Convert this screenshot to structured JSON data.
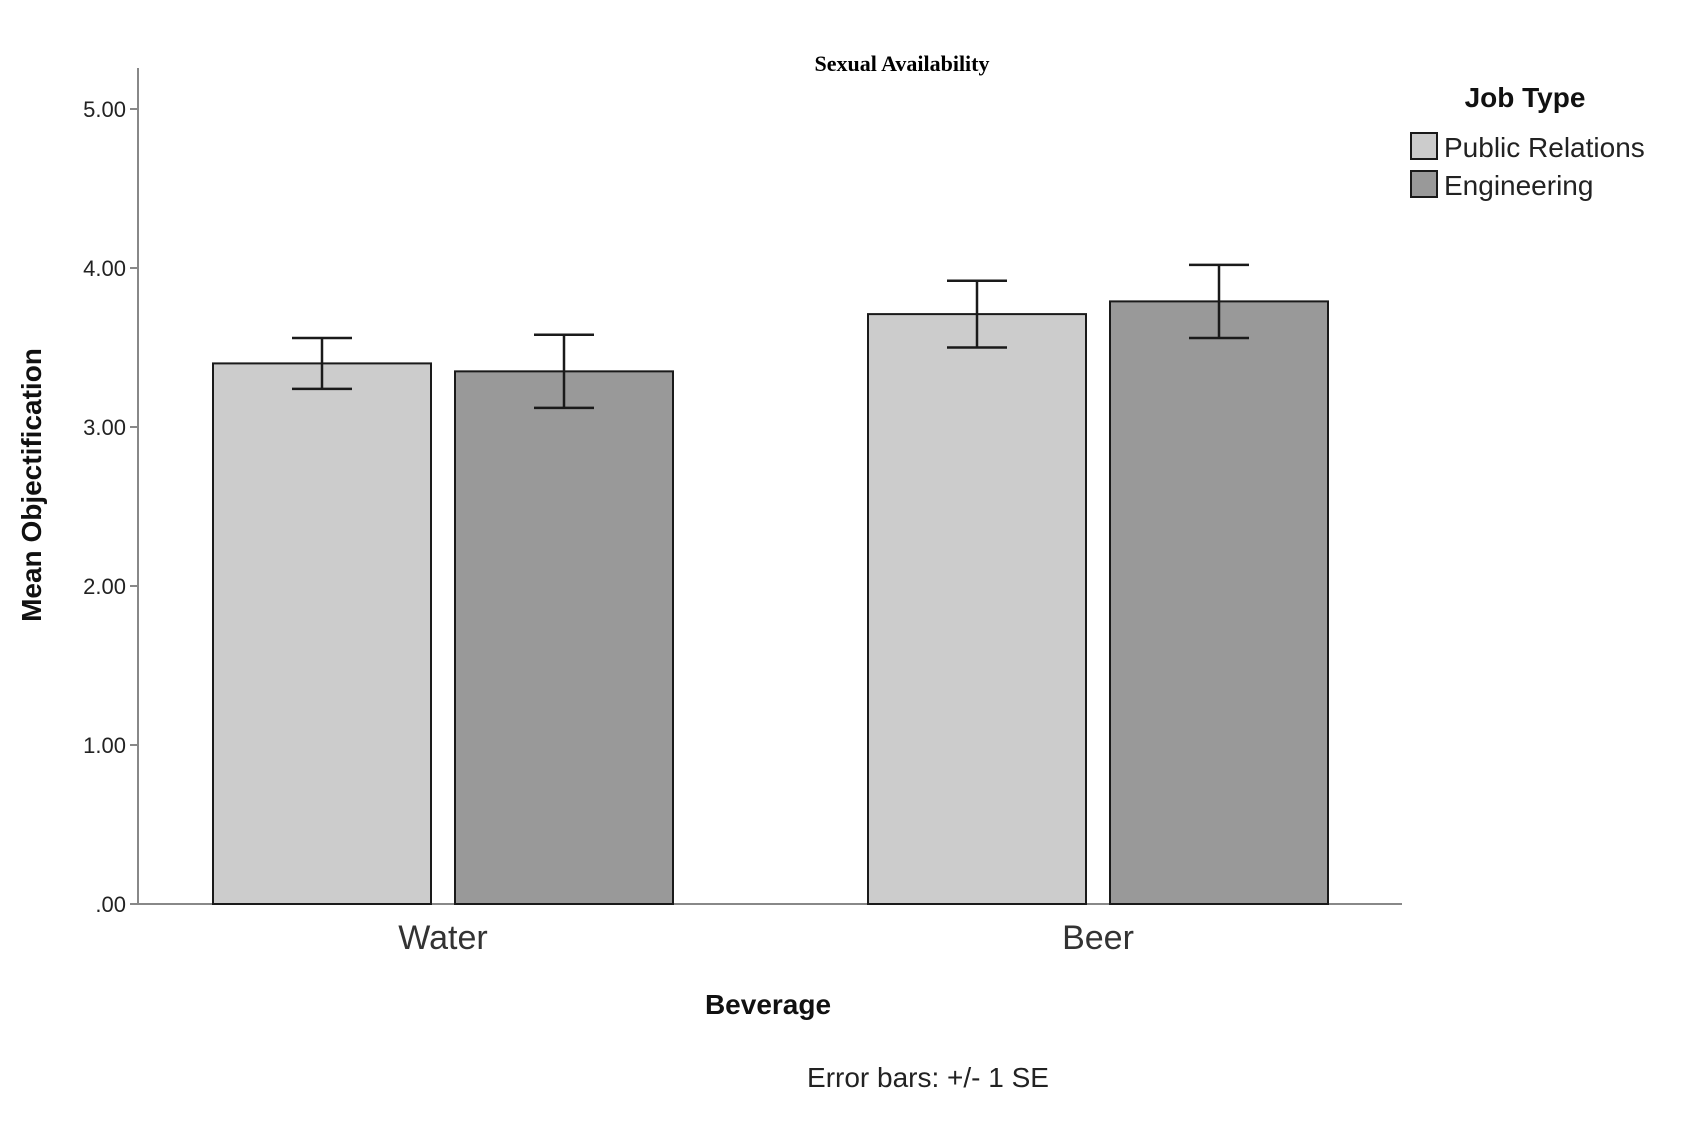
{
  "chart_data": {
    "type": "bar",
    "title": "Sexual Availability",
    "xlabel": "Beverage",
    "ylabel": "Mean Objectification",
    "categories": [
      "Water",
      "Beer"
    ],
    "series": [
      {
        "name": "Public Relations",
        "color": "#cccccc",
        "values": [
          3.4,
          3.71
        ],
        "se": [
          0.16,
          0.21
        ]
      },
      {
        "name": "Engineering",
        "color": "#999999",
        "values": [
          3.35,
          3.79
        ],
        "se": [
          0.23,
          0.23
        ]
      }
    ],
    "ylim": [
      0,
      5.2
    ],
    "yticks": [
      0,
      1,
      2,
      3,
      4,
      5
    ],
    "ytick_labels": [
      ".00",
      "1.00",
      "2.00",
      "3.00",
      "4.00",
      "5.00"
    ],
    "legend_title": "Job Type",
    "legend_position": "top-right",
    "grid": false,
    "note": "Error bars: +/- 1 SE"
  }
}
